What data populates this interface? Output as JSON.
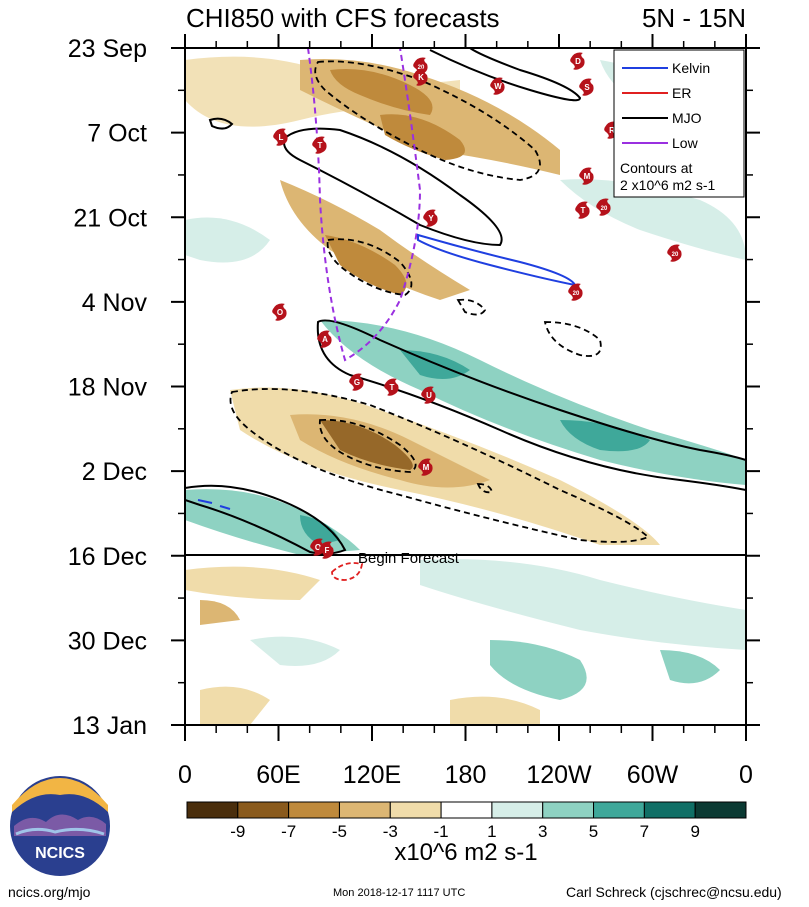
{
  "chart_data": {
    "type": "heatmap",
    "title_left": "CHI850 with CFS forecasts",
    "title_right": "5N - 15N",
    "y_axis": {
      "labels": [
        "23 Sep",
        "7 Oct",
        "21 Oct",
        "4 Nov",
        "18 Nov",
        "2 Dec",
        "16 Dec",
        "30 Dec",
        "13 Jan"
      ]
    },
    "x_axis": {
      "labels": [
        "0",
        "60E",
        "120E",
        "180",
        "120W",
        "60W",
        "0"
      ],
      "range_deg_lon": [
        0,
        360
      ]
    },
    "colorbar": {
      "tick_labels": [
        "-9",
        "-7",
        "-5",
        "-3",
        "-1",
        "1",
        "3",
        "5",
        "7",
        "9"
      ],
      "bins": [
        -11,
        -9,
        -7,
        -5,
        -3,
        -1,
        1,
        3,
        5,
        7,
        9,
        11
      ],
      "colors": [
        "#4a2e0c",
        "#8a5a1c",
        "#bf8a3c",
        "#dcb673",
        "#f0dcaa",
        "#ffffff",
        "#d6eee8",
        "#8ed2c2",
        "#3fa89a",
        "#106f66",
        "#0b3a33"
      ],
      "units": "x10^6 m2 s-1"
    },
    "legend": {
      "entries": [
        {
          "label": "Kelvin",
          "color": "#1f3fe0"
        },
        {
          "label": "ER",
          "color": "#e02020"
        },
        {
          "label": "MJO",
          "color": "#000000"
        },
        {
          "label": "Low",
          "color": "#9a30e0"
        }
      ],
      "note_line1": "Contours at",
      "note_line2": "2 x10^6 m2 s-1"
    },
    "forecast_line_label": "Begin Forecast",
    "storms": [
      "L",
      "T",
      "Y",
      "D",
      "20",
      "K",
      "W",
      "S",
      "R",
      "M",
      "T",
      "20",
      "20",
      "20",
      "O",
      "A",
      "G",
      "T",
      "U",
      "M",
      "O",
      "F",
      "K"
    ]
  },
  "footer": {
    "logo_text": "NCICS",
    "url": "ncics.org/mjo",
    "timestamp": "Mon 2018-12-17 1117 UTC",
    "author": "Carl Schreck (cjschrec@ncsu.edu)"
  }
}
